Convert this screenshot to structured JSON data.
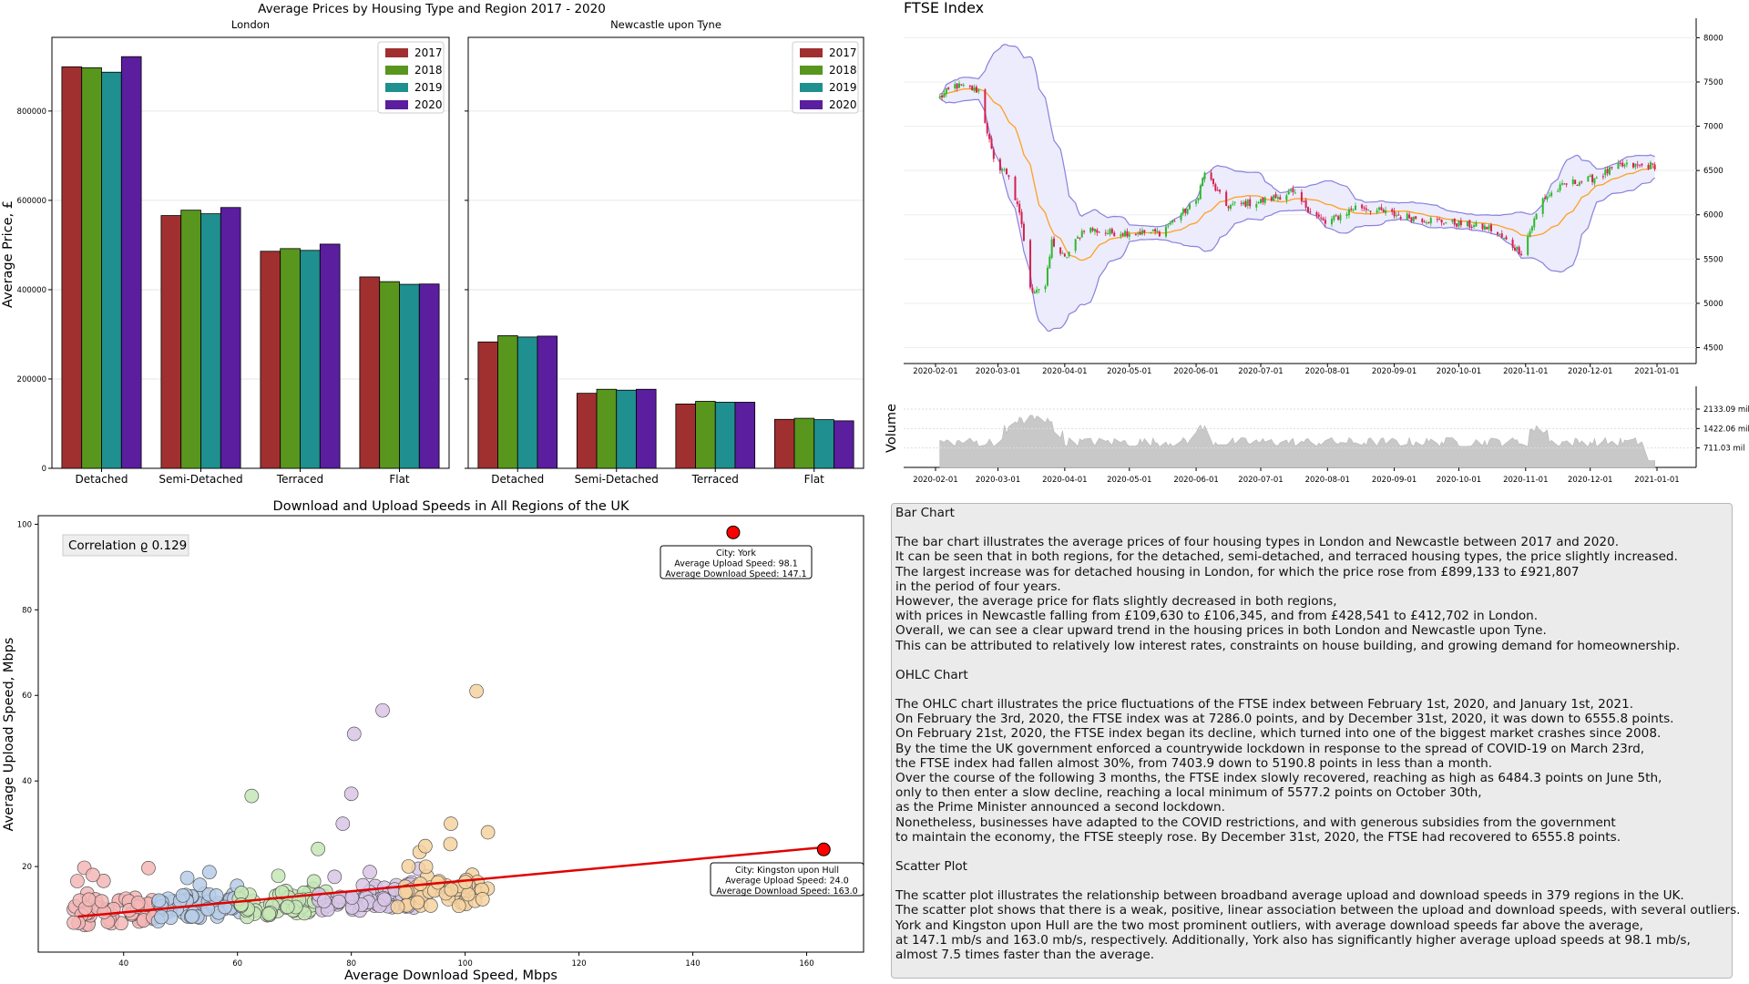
{
  "colors": {
    "y2017": "#a03030",
    "y2018": "#58961e",
    "y2019": "#1f8f8f",
    "y2020": "#5a1e9e",
    "band_fill": "#ececfc",
    "band_line": "#8a80dc",
    "ma_line": "#ffa020",
    "candle_up": "#2eb82e",
    "candle_down": "#d62050",
    "volume_fill": "#c8c8c8",
    "scatter_line": "#e00000"
  },
  "housing": {
    "suptitle": "Average Prices by Housing Type and Region 2017 - 2020",
    "ylabel": "Average Price, £",
    "y_ticks": [
      "0",
      "200000",
      "400000",
      "600000",
      "800000"
    ],
    "legend": [
      "2017",
      "2018",
      "2019",
      "2020"
    ]
  },
  "ftse": {
    "title": "FTSE Index",
    "x_ticks": [
      "2020-02-01",
      "2020-03-01",
      "2020-04-01",
      "2020-05-01",
      "2020-06-01",
      "2020-07-01",
      "2020-08-01",
      "2020-09-01",
      "2020-10-01",
      "2020-11-01",
      "2020-12-01",
      "2021-01-01"
    ],
    "y_ticks": [
      "4500",
      "5000",
      "5500",
      "6000",
      "6500",
      "7000",
      "7500",
      "8000"
    ],
    "volume_label": "Volume",
    "volume_ticks": [
      "711.03 mil",
      "1422.06 mil",
      "2133.09 mil"
    ]
  },
  "scatter": {
    "title": "Download and Upload Speeds in All Regions of the UK",
    "correlation": "Correlation ϱ 0.129",
    "ann_york": [
      "City: York",
      "Average Upload Speed: 98.1",
      "Average Download Speed: 147.1"
    ],
    "ann_hull": [
      "City: Kingston upon Hull",
      "Average Upload Speed: 24.0",
      "Average Download Speed: 163.0"
    ]
  },
  "story": [
    {
      "title": "Bar Chart",
      "lines": [
        "The bar chart illustrates the average prices of four housing types in London and Newcastle between 2017 and 2020.",
        "It can be seen that in both regions, for the detached, semi-detached, and terraced housing types, the price slightly increased.",
        "The largest increase was for detached housing in London, for which the price rose from £899,133 to £921,807",
        "in the period of four years.",
        "However, the average price for flats slightly decreased in both regions,",
        "with prices in Newcastle falling from £109,630 to £106,345, and from £428,541 to £412,702 in London.",
        "Overall, we can see a clear upward trend in the housing prices in both London and Newcastle upon Tyne.",
        "This can be attributed to relatively low interest rates, constraints on house building, and growing demand for homeownership."
      ]
    },
    {
      "title": "OHLC Chart",
      "lines": [
        "The OHLC chart illustrates the price fluctuations of the FTSE index between February 1st, 2020, and January 1st, 2021.",
        "On February the 3rd, 2020, the FTSE index was at 7286.0 points, and by December 31st, 2020, it was down to 6555.8 points.",
        "On February 21st, 2020, the FTSE index began its decline, which turned into one of the biggest market crashes since 2008.",
        "By the time the UK government enforced a countrywide lockdown in response to the spread of COVID-19 on March 23rd,",
        "the FTSE index had fallen almost 30%, from 7403.9 down to 5190.8 points in less than a month.",
        "Over the course of the following 3 months, the FTSE index slowly recovered, reaching as high as 6484.3 points on June 5th,",
        "only to then enter a slow decline, reaching a local minimum of 5577.2 points on October 30th,",
        "as the Prime Minister announced a second lockdown.",
        "Nonetheless, businesses have adapted to the COVID restrictions, and with generous subsidies from the government",
        "to maintain the economy, the FTSE steeply rose. By December 31st, 2020, the FTSE had recovered to 6555.8 points."
      ]
    },
    {
      "title": "Scatter Plot",
      "lines": [
        "The scatter plot illustrates the relationship between broadband average upload and download speeds in 379 regions in the UK.",
        "The scatter plot shows that there is a weak, positive, linear association between the upload and download speeds, with several outliers.",
        "York and Kingston upon Hull are the two most prominent outliers, with average download speeds far above the average,",
        "at 147.1 mb/s and 163.0 mb/s, respectively. Additionally, York also has significantly higher average upload speeds at 98.1 mb/s,",
        "almost 7.5 times faster than the average."
      ]
    }
  ],
  "chart_data": [
    {
      "type": "bar",
      "title": "London",
      "categories": [
        "Detached",
        "Semi-Detached",
        "Terraced",
        "Flat"
      ],
      "series": [
        {
          "name": "2017",
          "values": [
            899133,
            566000,
            486000,
            428541
          ]
        },
        {
          "name": "2018",
          "values": [
            897000,
            578000,
            492000,
            418000
          ]
        },
        {
          "name": "2019",
          "values": [
            887000,
            570000,
            488000,
            412000
          ]
        },
        {
          "name": "2020",
          "values": [
            921807,
            584000,
            502000,
            412702
          ]
        }
      ],
      "ylim": [
        0,
        965000
      ],
      "ylabel": "Average Price, £"
    },
    {
      "type": "bar",
      "title": "Newcastle upon Tyne",
      "categories": [
        "Detached",
        "Semi-Detached",
        "Terraced",
        "Flat"
      ],
      "series": [
        {
          "name": "2017",
          "values": [
            283000,
            168000,
            144000,
            109630
          ]
        },
        {
          "name": "2018",
          "values": [
            297000,
            177000,
            150000,
            112000
          ]
        },
        {
          "name": "2019",
          "values": [
            294000,
            175000,
            148000,
            109000
          ]
        },
        {
          "name": "2020",
          "values": [
            296000,
            177000,
            148000,
            106345
          ]
        }
      ],
      "ylim": [
        0,
        965000
      ]
    },
    {
      "type": "line",
      "title": "FTSE Index",
      "subtype": "ohlc_with_bollinger_and_volume",
      "x_start": "2020-02-01",
      "x_end": "2021-01-01",
      "ylim": [
        4320,
        8220
      ],
      "close_series": [
        [
          "2020-02-01",
          7286
        ],
        [
          "2020-02-10",
          7460
        ],
        [
          "2020-02-21",
          7403.9
        ],
        [
          "2020-02-28",
          6600
        ],
        [
          "2020-03-06",
          6450
        ],
        [
          "2020-03-12",
          5900
        ],
        [
          "2020-03-16",
          5150
        ],
        [
          "2020-03-23",
          5190.8
        ],
        [
          "2020-03-26",
          5700
        ],
        [
          "2020-04-01",
          5500
        ],
        [
          "2020-04-10",
          5850
        ],
        [
          "2020-04-20",
          5800
        ],
        [
          "2020-05-01",
          5800
        ],
        [
          "2020-05-15",
          5800
        ],
        [
          "2020-06-01",
          6150
        ],
        [
          "2020-06-05",
          6484.3
        ],
        [
          "2020-06-15",
          6100
        ],
        [
          "2020-07-01",
          6150
        ],
        [
          "2020-07-15",
          6250
        ],
        [
          "2020-07-31",
          5900
        ],
        [
          "2020-08-15",
          6100
        ],
        [
          "2020-09-01",
          6000
        ],
        [
          "2020-09-15",
          5950
        ],
        [
          "2020-10-01",
          5900
        ],
        [
          "2020-10-15",
          5850
        ],
        [
          "2020-10-30",
          5577.2
        ],
        [
          "2020-11-09",
          6180
        ],
        [
          "2020-11-20",
          6350
        ],
        [
          "2020-12-01",
          6400
        ],
        [
          "2020-12-15",
          6550
        ],
        [
          "2020-12-31",
          6555.8
        ]
      ],
      "volume_ticks_mil": [
        711.03,
        1422.06,
        2133.09
      ]
    },
    {
      "type": "scatter",
      "title": "Download and Upload Speeds in All Regions of the UK",
      "xlabel": "Average Download Speed, Mbps",
      "ylabel": "Average Upload Speed, Mbps",
      "xlim": [
        25,
        170
      ],
      "ylim": [
        0,
        102
      ],
      "x_ticks": [
        40,
        60,
        80,
        100,
        120,
        140,
        160
      ],
      "y_ticks": [
        20,
        40,
        60,
        80,
        100
      ],
      "correlation": 0.129,
      "trend": {
        "x0": 32,
        "y0": 8.3,
        "x1": 163,
        "y1": 24.5
      },
      "outliers": [
        {
          "label": "York",
          "x": 147.1,
          "y": 98.1
        },
        {
          "label": "Kingston upon Hull",
          "x": 163.0,
          "y": 24.0
        }
      ],
      "notable_points": [
        [
          102,
          61
        ],
        [
          85.5,
          56.5
        ],
        [
          80.5,
          51
        ],
        [
          80,
          37
        ],
        [
          62.5,
          36.5
        ],
        [
          78.5,
          30
        ],
        [
          97.5,
          30
        ],
        [
          104,
          28
        ]
      ]
    }
  ]
}
